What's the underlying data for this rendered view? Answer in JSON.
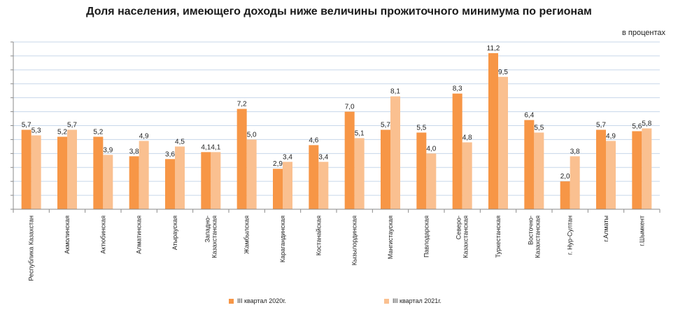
{
  "chart_data": {
    "type": "bar",
    "title": "Доля населения, имеющего доходы ниже величины прожиточного минимума по регионам",
    "unit": "в процентах",
    "categories": [
      "Республика Казахстан",
      "Акмолинская",
      "Актюбинская",
      "Алматинская",
      "Атырауская",
      "Западно-Казахстанская",
      "Жамбылская",
      "Карагандинская",
      "Костанайская",
      "Кызылординская",
      "Мангистауская",
      "Павлодарская",
      "Северо-Казахстанская",
      "Туркестанская",
      "Восточно-Казахстанская",
      "г. Нур-Султан",
      "г.Алматы",
      "г.Шымкент"
    ],
    "category_lines": [
      [
        "Республика Казахстан"
      ],
      [
        "Акмолинская"
      ],
      [
        "Актюбинская"
      ],
      [
        "Алматинская"
      ],
      [
        "Атырауская"
      ],
      [
        "Западно-",
        "Казахстанская"
      ],
      [
        "Жамбылская"
      ],
      [
        "Карагандинская"
      ],
      [
        "Костанайская"
      ],
      [
        "Кызылординская"
      ],
      [
        "Мангистауская"
      ],
      [
        "Павлодарская"
      ],
      [
        "Северо-",
        "Казахстанская"
      ],
      [
        "Туркестанская"
      ],
      [
        "Восточно-",
        "Казахстанская"
      ],
      [
        "г. Нур-Султан"
      ],
      [
        "г.Алматы"
      ],
      [
        "г.Шымкент"
      ]
    ],
    "series": [
      {
        "name": "III квартал 2020г.",
        "color": "#f79646",
        "values": [
          5.7,
          5.2,
          5.2,
          3.8,
          3.6,
          4.1,
          7.2,
          2.9,
          4.6,
          7.0,
          5.7,
          5.5,
          8.3,
          11.2,
          6.4,
          2.0,
          5.7,
          5.6
        ],
        "labels": [
          "5,7",
          "5,2",
          "5,2",
          "3,8",
          "3,6",
          "4,1",
          "7,2",
          "2,9",
          "4,6",
          "7,0",
          "5,7",
          "5,5",
          "8,3",
          "11,2",
          "6,4",
          "2,0",
          "5,7",
          "5,6"
        ]
      },
      {
        "name": "III квартал 2021г.",
        "color": "#fac090",
        "values": [
          5.3,
          5.7,
          3.9,
          4.9,
          4.5,
          4.1,
          5.0,
          3.4,
          3.4,
          5.1,
          8.1,
          4.0,
          4.8,
          9.5,
          5.5,
          3.8,
          4.9,
          5.8
        ],
        "labels": [
          "5,3",
          "5,7",
          "3,9",
          "4,9",
          "4,5",
          "4,1",
          "5,0",
          "3,4",
          "3,4",
          "5,1",
          "8,1",
          "4,0",
          "4,8",
          "9,5",
          "5,5",
          "3,8",
          "4,9",
          "5,8"
        ]
      }
    ],
    "ylim": [
      0,
      12
    ],
    "y_step": 1,
    "grid": true,
    "legend_position": "bottom",
    "xlabel": "",
    "ylabel": ""
  }
}
